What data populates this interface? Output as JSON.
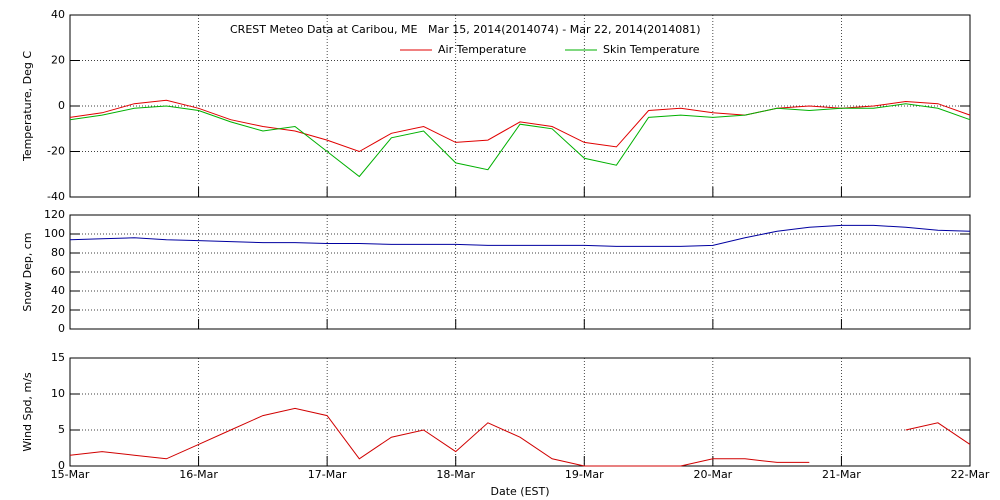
{
  "chart_data": [
    {
      "type": "line",
      "title": "CREST Meteo Data at Caribou, ME   Mar 15, 2014(2014074) - Mar 22, 2014(2014081)",
      "ylabel": "Temperature, Deg C",
      "ylim": [
        -40,
        40
      ],
      "yticks": [
        -40,
        -20,
        0,
        20,
        40
      ],
      "xlim": [
        0,
        7
      ],
      "xticks": [
        0,
        1,
        2,
        3,
        4,
        5,
        6,
        7
      ],
      "grid": true,
      "x": [
        0,
        0.25,
        0.5,
        0.75,
        1,
        1.25,
        1.5,
        1.75,
        2,
        2.25,
        2.5,
        2.75,
        3,
        3.25,
        3.5,
        3.75,
        4,
        4.25,
        4.5,
        4.75,
        5,
        5.25,
        5.5,
        5.75,
        6,
        6.25,
        6.5,
        6.75,
        7
      ],
      "series": [
        {
          "name": "Air Temperature",
          "color": "#e00000",
          "values": [
            -5,
            -3,
            1,
            2.5,
            -1,
            -6,
            -9,
            -11,
            -15,
            -20,
            -12,
            -9,
            -16,
            -15,
            -7,
            -9,
            -16,
            -18,
            -2,
            -1,
            -3,
            -4,
            -1,
            0,
            -1,
            0,
            2,
            1,
            -4
          ]
        },
        {
          "name": "Skin Temperature",
          "color": "#00b000",
          "values": [
            -6,
            -4,
            -1,
            0,
            -2,
            -7,
            -11,
            -9,
            -20,
            -31,
            -14,
            -11,
            -25,
            -28,
            -8,
            -10,
            -23,
            -26,
            -5,
            -4,
            -5,
            -4,
            -1,
            -2,
            -1,
            -1,
            1,
            -1,
            -6
          ]
        }
      ]
    },
    {
      "type": "line",
      "ylabel": "Snow Dep, cm",
      "ylim": [
        0,
        120
      ],
      "yticks": [
        0,
        20,
        40,
        60,
        80,
        100,
        120
      ],
      "xlim": [
        0,
        7
      ],
      "xticks": [
        0,
        1,
        2,
        3,
        4,
        5,
        6,
        7
      ],
      "grid": true,
      "x": [
        0,
        0.25,
        0.5,
        0.75,
        1,
        1.25,
        1.5,
        1.75,
        2,
        2.25,
        2.5,
        2.75,
        3,
        3.25,
        3.5,
        3.75,
        4,
        4.25,
        4.5,
        4.75,
        5,
        5.25,
        5.5,
        5.75,
        6,
        6.25,
        6.5,
        6.75,
        7
      ],
      "series": [
        {
          "color": "#0000a0",
          "values": [
            94,
            95,
            96,
            94,
            93,
            92,
            91,
            91,
            90,
            90,
            89,
            89,
            89,
            88,
            88,
            88,
            88,
            87,
            87,
            87,
            88,
            96,
            103,
            107,
            109,
            109,
            107,
            104,
            103
          ]
        }
      ]
    },
    {
      "type": "line",
      "ylabel": "Wind Spd, m/s",
      "xlabel": "Date (EST)",
      "ylim": [
        0,
        15
      ],
      "yticks": [
        0,
        5,
        10,
        15
      ],
      "xlim": [
        0,
        7
      ],
      "grid": true,
      "xticks": [
        {
          "value": 0,
          "label": "15-Mar"
        },
        {
          "value": 1,
          "label": "16-Mar"
        },
        {
          "value": 2,
          "label": "17-Mar"
        },
        {
          "value": 3,
          "label": "18-Mar"
        },
        {
          "value": 4,
          "label": "19-Mar"
        },
        {
          "value": 5,
          "label": "20-Mar"
        },
        {
          "value": 6,
          "label": "21-Mar"
        },
        {
          "value": 7,
          "label": "22-Mar"
        }
      ],
      "x": [
        0,
        0.25,
        0.5,
        0.75,
        1,
        1.25,
        1.5,
        1.75,
        2,
        2.25,
        2.5,
        2.75,
        3,
        3.25,
        3.5,
        3.75,
        4,
        4.25,
        4.5,
        4.75,
        5,
        5.25,
        5.5,
        5.75,
        6,
        6.25,
        6.5,
        6.75,
        7
      ],
      "series": [
        {
          "color": "#d00000",
          "values": [
            1.5,
            2,
            1.5,
            1,
            3,
            5,
            7,
            8,
            7,
            1,
            4,
            5,
            2,
            6,
            4,
            1,
            0,
            0,
            0,
            0,
            1,
            1,
            0.5,
            0.5,
            null,
            null,
            5,
            6,
            3
          ]
        }
      ]
    }
  ]
}
